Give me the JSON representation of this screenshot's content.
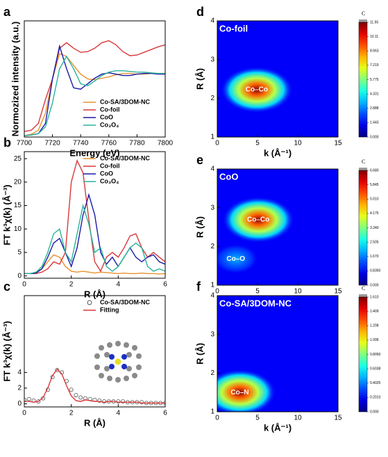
{
  "chart_data": [
    {
      "panel": "a",
      "type": "line",
      "xlabel": "Energy (eV)",
      "ylabel": "Normozized intensity (a.u.)",
      "x": [
        7700,
        7705,
        7710,
        7715,
        7720,
        7725,
        7730,
        7735,
        7740,
        7745,
        7750,
        7755,
        7760,
        7765,
        7770,
        7775,
        7780,
        7785,
        7790,
        7795,
        7800
      ],
      "xlim": [
        7700,
        7800
      ],
      "xticks": [
        7700,
        7720,
        7740,
        7760,
        7780,
        7800
      ],
      "ylim": [
        0,
        1.7
      ],
      "legend": "lower right",
      "series": [
        {
          "name": "Co-SA/3DOM-NC",
          "color": "#e8912f",
          "values": [
            0.02,
            0.04,
            0.1,
            0.35,
            0.85,
            1.22,
            1.18,
            1.05,
            0.92,
            0.85,
            0.84,
            0.86,
            0.88,
            0.91,
            0.93,
            0.93,
            0.92,
            0.92,
            0.93,
            0.93,
            0.93
          ]
        },
        {
          "name": "Co-foil",
          "color": "#d9383a",
          "values": [
            0.08,
            0.1,
            0.2,
            0.55,
            0.85,
            1.3,
            1.38,
            1.3,
            1.24,
            1.25,
            1.3,
            1.38,
            1.41,
            1.35,
            1.25,
            1.19,
            1.2,
            1.24,
            1.28,
            1.32,
            1.35
          ]
        },
        {
          "name": "CoO",
          "color": "#1a1aa6",
          "values": [
            0.02,
            0.03,
            0.05,
            0.2,
            0.85,
            1.33,
            1.0,
            0.72,
            0.7,
            0.78,
            0.86,
            0.92,
            0.94,
            0.92,
            0.9,
            0.9,
            0.92,
            0.93,
            0.93,
            0.92,
            0.92
          ]
        },
        {
          "name": "Co₃O₄",
          "color": "#2bb39a",
          "values": [
            0.02,
            0.03,
            0.05,
            0.15,
            0.5,
            1.0,
            1.18,
            1.0,
            0.78,
            0.75,
            0.82,
            0.9,
            0.95,
            0.97,
            0.97,
            0.96,
            0.95,
            0.95,
            0.94,
            0.93,
            0.93
          ]
        }
      ]
    },
    {
      "panel": "b",
      "type": "line",
      "xlabel": "R (Å)",
      "ylabel": "FT k³χ(k) (Å⁻³)",
      "x": [
        0,
        0.25,
        0.5,
        0.75,
        1,
        1.25,
        1.5,
        1.75,
        2,
        2.25,
        2.5,
        2.75,
        3,
        3.25,
        3.5,
        3.75,
        4,
        4.25,
        4.5,
        4.75,
        5,
        5.25,
        5.5,
        5.75,
        6
      ],
      "xlim": [
        0,
        6
      ],
      "xticks": [
        0,
        2,
        4,
        6
      ],
      "ylim": [
        -0.5,
        26.5
      ],
      "yticks": [
        0,
        5,
        10,
        15,
        20,
        25
      ],
      "legend": "upper right",
      "series": [
        {
          "name": "Co-SA/3DOM-NC",
          "color": "#e8912f",
          "values": [
            0.5,
            0.5,
            0.8,
            1.5,
            3,
            4.5,
            4,
            2,
            1,
            0.8,
            1,
            0.8,
            0.6,
            0.8,
            0.7,
            0.6,
            0.5,
            0.6,
            0.5,
            0.5,
            0.6,
            0.5,
            0.5,
            0.4,
            0.5
          ]
        },
        {
          "name": "Co-foil",
          "color": "#d9383a",
          "values": [
            0.5,
            0.5,
            0.5,
            0.8,
            1.5,
            3,
            2.5,
            5,
            20,
            24.6,
            22,
            12,
            3,
            1,
            4,
            5,
            4,
            6,
            8.5,
            9,
            6,
            4,
            5,
            4,
            3
          ]
        },
        {
          "name": "CoO",
          "color": "#1a1aa6",
          "values": [
            0.5,
            0.5,
            0.6,
            1.5,
            4,
            7,
            8,
            5,
            2,
            6,
            13,
            17.3,
            13,
            5,
            2.5,
            4,
            2,
            4,
            6,
            4,
            3,
            4,
            4.5,
            3,
            2.5
          ]
        },
        {
          "name": "Co₃O₄",
          "color": "#2bb39a",
          "values": [
            0.5,
            0.5,
            0.8,
            2,
            5,
            9,
            10,
            5,
            3,
            9,
            15,
            11,
            5,
            6,
            2,
            1,
            2,
            4,
            6,
            7,
            6,
            2,
            1,
            1.5,
            1
          ]
        }
      ]
    },
    {
      "panel": "c",
      "type": "line",
      "xlabel": "R (Å)",
      "ylabel": "FT k³χ(k) (Å⁻³)",
      "x": [
        0,
        0.2,
        0.4,
        0.6,
        0.8,
        1,
        1.2,
        1.4,
        1.6,
        1.8,
        2,
        2.2,
        2.4,
        2.6,
        2.8,
        3,
        3.2,
        3.4,
        3.6,
        3.8,
        4,
        4.2,
        4.4,
        4.6,
        4.8,
        5,
        5.2,
        5.4,
        5.6,
        5.8,
        6
      ],
      "xlim": [
        0,
        6
      ],
      "xticks": [
        0,
        2,
        4,
        6
      ],
      "ylim": [
        -0.4,
        13.8
      ],
      "yticks": [
        0,
        2,
        4
      ],
      "legend": "upper right",
      "series": [
        {
          "name": "Co-SA/3DOM-NC",
          "color": "#555555",
          "marker": true,
          "values": [
            0.5,
            0.6,
            0.4,
            0.3,
            0.7,
            1.8,
            3.4,
            4.3,
            4,
            2.9,
            1.8,
            1.1,
            0.8,
            0.7,
            0.6,
            0.5,
            0.4,
            0.3,
            0.3,
            0.3,
            0.3,
            0.3,
            0.2,
            0.2,
            0.2,
            0.2,
            0.1,
            0.1,
            0.1,
            0.1,
            0.1
          ]
        },
        {
          "name": "Fitting",
          "color": "#d9383a",
          "values": [
            0.3,
            0.3,
            0.2,
            0.3,
            0.8,
            2,
            3.6,
            4.4,
            3.8,
            2.3,
            1,
            0.4,
            0.3,
            0.5,
            0.4,
            0.3,
            0.3,
            0.2,
            0.3,
            0.3,
            0.2,
            0.2,
            0.2,
            0.2,
            0.2,
            0.1,
            0.1,
            0.1,
            0.1,
            0.1,
            0.1
          ]
        }
      ]
    },
    {
      "panel": "d",
      "type": "contour",
      "title": "Co-foil",
      "xlabel": "k (Å⁻¹)",
      "ylabel": "R (Å)",
      "xlim": [
        0,
        15
      ],
      "xticks": [
        0,
        5,
        10,
        15
      ],
      "ylim": [
        1,
        4
      ],
      "yticks": [
        1,
        2,
        3,
        4
      ],
      "colorbar_title": "C",
      "clim": [
        0,
        11.55
      ],
      "cticks": [
        {
          "value": 0,
          "label": "0.000"
        },
        1.443,
        2.888,
        4.331,
        5.775,
        7.219,
        8.663,
        10.11,
        11.55
      ],
      "annotations": [
        {
          "text": "Co–Co",
          "k": 4.9,
          "R": 2.22,
          "value": 11.5
        }
      ]
    },
    {
      "panel": "e",
      "type": "contour",
      "title": "CoO",
      "xlabel": "k (Å⁻¹)",
      "ylabel": "R (Å)",
      "xlim": [
        0,
        15
      ],
      "xticks": [
        0,
        5,
        10,
        15
      ],
      "ylim": [
        1,
        4
      ],
      "yticks": [
        1,
        2,
        3,
        4
      ],
      "colorbar_title": "C",
      "clim": [
        0,
        6.68
      ],
      "cticks": [
        {
          "value": 0,
          "label": "0.000"
        },
        {
          "value": 0.835,
          "label": "0.8350"
        },
        {
          "value": 1.67,
          "label": "1.670"
        },
        2.505,
        {
          "value": 3.34,
          "label": "3.340"
        },
        4.175,
        {
          "value": 5.01,
          "label": "5.010"
        },
        5.845,
        {
          "value": 6.68,
          "label": "6.680"
        }
      ],
      "annotations": [
        {
          "text": "Co–Co",
          "k": 5.1,
          "R": 2.69,
          "value": 6.6
        },
        {
          "text": "Co–O",
          "k": 2.3,
          "R": 1.68,
          "value": 2.0
        }
      ]
    },
    {
      "panel": "f",
      "type": "contour",
      "title": "Co-SA/3DOM-NC",
      "xlabel": "k (Å⁻¹)",
      "ylabel": "R (Å)",
      "xlim": [
        0,
        15
      ],
      "xticks": [
        0,
        5,
        10,
        15
      ],
      "ylim": [
        1,
        4
      ],
      "yticks": [
        1,
        2,
        3,
        4
      ],
      "colorbar_title": "C",
      "clim": [
        0,
        1.61
      ],
      "cticks": [
        {
          "value": 0,
          "label": "0.000"
        },
        0.2013,
        0.4025,
        0.6038,
        {
          "value": 0.805,
          "label": "0.8050"
        },
        1.006,
        1.208,
        1.409,
        {
          "value": 1.61,
          "label": "1.610"
        }
      ],
      "annotations": [
        {
          "text": "Co–N",
          "k": 2.8,
          "R": 1.5,
          "value": 1.6
        }
      ]
    }
  ]
}
